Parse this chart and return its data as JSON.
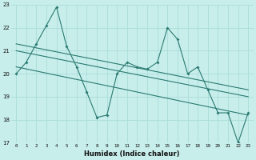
{
  "xlabel": "Humidex (Indice chaleur)",
  "xlim": [
    -0.5,
    23.5
  ],
  "ylim": [
    17,
    23
  ],
  "yticks": [
    17,
    18,
    19,
    20,
    21,
    22,
    23
  ],
  "xticks": [
    0,
    1,
    2,
    3,
    4,
    5,
    6,
    7,
    8,
    9,
    10,
    11,
    12,
    13,
    14,
    15,
    16,
    17,
    18,
    19,
    20,
    21,
    22,
    23
  ],
  "bg_color": "#c8eeeb",
  "grid_color": "#aaddd8",
  "line_color": "#2a7a72",
  "line1_x": [
    0,
    1,
    2,
    3,
    4,
    5,
    6,
    7,
    8,
    9,
    10,
    11,
    12,
    13,
    14,
    15,
    16,
    17,
    18,
    19,
    20,
    21,
    22,
    23
  ],
  "line1_y": [
    20.0,
    20.5,
    21.3,
    22.1,
    22.9,
    21.2,
    20.3,
    19.2,
    18.1,
    18.2,
    20.0,
    20.5,
    20.3,
    20.2,
    20.5,
    22.0,
    21.5,
    20.0,
    20.3,
    19.3,
    18.3,
    18.3,
    17.0,
    18.3
  ],
  "line2_x": [
    0,
    23
  ],
  "line2_y": [
    21.3,
    19.3
  ],
  "line3_x": [
    0,
    23
  ],
  "line3_y": [
    21.0,
    19.0
  ],
  "line4_x": [
    0,
    23
  ],
  "line4_y": [
    20.3,
    18.2
  ]
}
